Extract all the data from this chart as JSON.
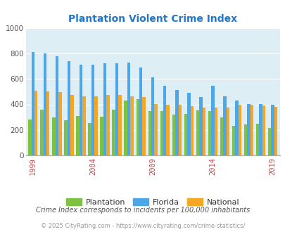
{
  "title": "Plantation Violent Crime Index",
  "years": [
    1999,
    2000,
    2001,
    2002,
    2003,
    2004,
    2005,
    2006,
    2007,
    2008,
    2009,
    2010,
    2011,
    2012,
    2013,
    2014,
    2015,
    2016,
    2017,
    2018,
    2019
  ],
  "plantation": [
    280,
    360,
    300,
    275,
    310,
    255,
    305,
    360,
    430,
    440,
    345,
    350,
    320,
    325,
    355,
    350,
    300,
    230,
    245,
    250,
    215
  ],
  "florida": [
    810,
    800,
    780,
    740,
    710,
    710,
    720,
    720,
    730,
    690,
    610,
    545,
    515,
    490,
    460,
    545,
    465,
    430,
    405,
    405,
    395
  ],
  "national": [
    510,
    500,
    495,
    475,
    465,
    465,
    475,
    475,
    465,
    460,
    405,
    400,
    395,
    385,
    375,
    375,
    375,
    395,
    400,
    390,
    380
  ],
  "plantation_color": "#7dc242",
  "florida_color": "#4da6e8",
  "national_color": "#f5a623",
  "bg_color": "#ddeef5",
  "ylim": [
    0,
    1000
  ],
  "yticks": [
    0,
    200,
    400,
    600,
    800,
    1000
  ],
  "legend_labels": [
    "Plantation",
    "Florida",
    "National"
  ],
  "note": "Crime Index corresponds to incidents per 100,000 inhabitants",
  "footer": "© 2025 CityRating.com - https://www.cityrating.com/crime-statistics/",
  "title_color": "#2277cc",
  "note_color": "#555555",
  "footer_color": "#999999",
  "xtick_color": "#cc4444",
  "ytick_color": "#555555",
  "grid_color": "#ffffff",
  "bar_width": 0.26
}
